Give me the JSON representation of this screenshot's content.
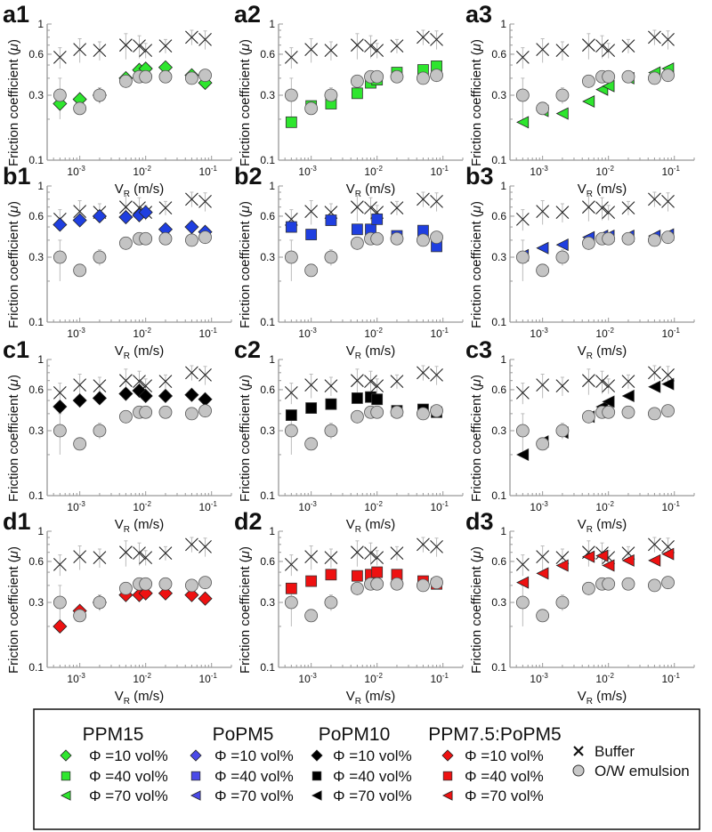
{
  "chart_data": {
    "type": "scatter",
    "x_scale": "log",
    "y_scale": "log",
    "xlabel": "V_R (m/s)",
    "xlabel_main": "V",
    "xlabel_sub": "R",
    "xlabel_unit": " (m/s)",
    "ylabel": "Friction coefficient (μ)",
    "ylabel_main": "Friction coefficient (",
    "ylabel_mu": "μ",
    "ylabel_close": ")",
    "xlim": [
      0.00032,
      0.2
    ],
    "ylim": [
      0.1,
      1
    ],
    "x_ticks": [
      {
        "value": 0.001,
        "base": "10",
        "exp": "-3"
      },
      {
        "value": 0.01,
        "base": "10",
        "exp": "-2"
      },
      {
        "value": 0.1,
        "base": "10",
        "exp": "-1"
      }
    ],
    "y_ticks": [
      {
        "value": 0.1,
        "label": "0.1"
      },
      {
        "value": 0.3,
        "label": "0.3"
      },
      {
        "value": 0.6,
        "label": "0.6"
      },
      {
        "value": 1,
        "label": "1"
      }
    ],
    "x": [
      0.0005,
      0.001,
      0.002,
      0.005,
      0.008,
      0.01,
      0.02,
      0.05,
      0.08
    ],
    "buffer": {
      "name": "Buffer",
      "values": [
        0.57,
        0.65,
        0.64,
        0.7,
        0.69,
        0.64,
        0.69,
        0.8,
        0.77
      ],
      "err": [
        0.1,
        0.13,
        0.1,
        0.15,
        0.13,
        0.08,
        0.08,
        0.1,
        0.12
      ]
    },
    "emulsion": {
      "name": "O/W emulsion",
      "values": [
        0.3,
        0.24,
        0.3,
        0.38,
        0.41,
        0.41,
        0.41,
        0.4,
        0.42
      ],
      "err": [
        0.1,
        0.02,
        0.04,
        0.03,
        0.04,
        0.03,
        0.02,
        0.02,
        0.02
      ]
    },
    "panels": [
      {
        "label": "a1",
        "series": "PPM15",
        "phi": "10 vol%",
        "marker": "diamond",
        "color": "#2ee62e",
        "values": [
          0.26,
          0.28,
          0.3,
          0.4,
          0.46,
          0.47,
          0.48,
          0.42,
          0.37
        ]
      },
      {
        "label": "a2",
        "series": "PPM15",
        "phi": "40 vol%",
        "marker": "square",
        "color": "#2ee62e",
        "values": [
          0.19,
          0.25,
          0.26,
          0.31,
          0.37,
          0.39,
          0.44,
          0.46,
          0.49
        ]
      },
      {
        "label": "a3",
        "series": "PPM15",
        "phi": "70 vol%",
        "marker": "triangle-left",
        "color": "#2ee62e",
        "values": [
          0.19,
          0.23,
          0.22,
          0.27,
          0.33,
          0.35,
          0.4,
          0.44,
          0.47
        ]
      },
      {
        "label": "b1",
        "series": "PoPM5",
        "phi": "10 vol%",
        "marker": "diamond",
        "color": "#1f3fe0",
        "values": [
          0.52,
          0.56,
          0.6,
          0.59,
          0.61,
          0.64,
          0.48,
          0.5,
          0.46
        ]
      },
      {
        "label": "b2",
        "series": "PoPM5",
        "phi": "40 vol%",
        "marker": "square",
        "color": "#1f3fe0",
        "values": [
          0.5,
          0.44,
          0.56,
          0.48,
          0.48,
          0.57,
          0.43,
          0.47,
          0.36
        ]
      },
      {
        "label": "b3",
        "series": "PoPM5",
        "phi": "70 vol%",
        "marker": "triangle-left",
        "color": "#1f3fe0",
        "values": [
          0.31,
          0.35,
          0.37,
          0.42,
          0.43,
          0.43,
          0.43,
          0.43,
          0.44
        ]
      },
      {
        "label": "c1",
        "series": "PoPM10",
        "phi": "10 vol%",
        "marker": "diamond",
        "color": "#000000",
        "values": [
          0.45,
          0.5,
          0.52,
          0.56,
          0.59,
          0.54,
          0.54,
          0.55,
          0.51
        ]
      },
      {
        "label": "c2",
        "series": "PoPM10",
        "phi": "40 vol%",
        "marker": "square",
        "color": "#000000",
        "values": [
          0.39,
          0.44,
          0.47,
          0.52,
          0.53,
          0.51,
          0.42,
          0.43,
          0.41
        ]
      },
      {
        "label": "c3",
        "series": "PoPM10",
        "phi": "70 vol%",
        "marker": "triangle-left",
        "color": "#000000",
        "values": [
          0.2,
          0.25,
          0.29,
          0.38,
          0.45,
          0.49,
          0.54,
          0.63,
          0.66
        ]
      },
      {
        "label": "d1",
        "series": "PPM7.5:PoPM5",
        "phi": "10 vol%",
        "marker": "diamond",
        "color": "#ee1111",
        "values": [
          0.2,
          0.26,
          0.3,
          0.34,
          0.34,
          0.35,
          0.35,
          0.34,
          0.32
        ]
      },
      {
        "label": "d2",
        "series": "PPM7.5:PoPM5",
        "phi": "40 vol%",
        "marker": "square",
        "color": "#ee1111",
        "values": [
          0.38,
          0.43,
          0.48,
          0.47,
          0.48,
          0.5,
          0.48,
          0.43,
          0.41
        ]
      },
      {
        "label": "d3",
        "series": "PPM7.5:PoPM5",
        "phi": "70 vol%",
        "marker": "triangle-left",
        "color": "#ee1111",
        "values": [
          0.42,
          0.49,
          0.56,
          0.65,
          0.66,
          0.56,
          0.61,
          0.61,
          0.68
        ]
      }
    ],
    "legend": {
      "placement": "bottom",
      "groups": [
        {
          "title": "PPM15",
          "color": "#2ee62e",
          "items": [
            "Φ =10 vol%",
            "Φ =40 vol%",
            "Φ =70 vol%"
          ]
        },
        {
          "title": "PoPM5",
          "color": "#4a4ae8",
          "items": [
            "Φ =10 vol%",
            "Φ =40 vol%",
            "Φ =70 vol%"
          ]
        },
        {
          "title": "PoPM10",
          "color": "#000000",
          "items": [
            "Φ =10 vol%",
            "Φ =40 vol%",
            "Φ =70 vol%"
          ]
        },
        {
          "title": "PPM7.5:PoPM5",
          "color": "#ee1111",
          "items": [
            "Φ =10 vol%",
            "Φ =40 vol%",
            "Φ =70 vol%"
          ]
        }
      ],
      "markers": [
        "diamond",
        "square",
        "triangle-left"
      ],
      "others": [
        {
          "label": "Buffer",
          "marker": "x"
        },
        {
          "label": "O/W emulsion",
          "marker": "circle",
          "color": "#c8c8c8"
        }
      ]
    }
  }
}
